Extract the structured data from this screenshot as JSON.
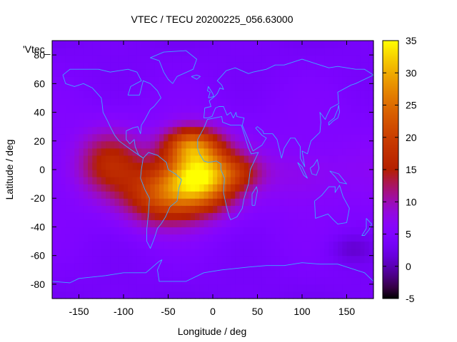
{
  "chart_data": {
    "type": "heatmap",
    "title": "VTEC / TECU 20200225_056.63000",
    "xlabel": "Longitude / deg",
    "ylabel": "Latitude / deg",
    "xlim": [
      -180,
      180
    ],
    "ylim": [
      -90,
      90
    ],
    "x_ticks": [
      -150,
      -100,
      -50,
      0,
      50,
      100,
      150
    ],
    "y_ticks": [
      -80,
      -60,
      -40,
      -20,
      0,
      20,
      40,
      60,
      80
    ],
    "x_tick_labels": [
      "-150",
      "-100",
      "-50",
      "0",
      "50",
      "100",
      "150"
    ],
    "y_tick_labels": [
      "-80",
      "-60",
      "-40",
      "-20",
      "0",
      "20",
      "40",
      "60",
      "80"
    ],
    "colorbar": {
      "min": -5,
      "max": 35,
      "ticks": [
        -5,
        0,
        5,
        10,
        15,
        20,
        25,
        30,
        35
      ],
      "tick_labels": [
        "-5",
        "0",
        "5",
        "10",
        "15",
        "20",
        "25",
        "30",
        "35"
      ]
    },
    "legend_label": "'Vtec_",
    "background_level": 6,
    "grid_step_deg": 5,
    "features": [
      {
        "name": "equatorial-anomaly-peak",
        "lon": -15,
        "lat": -5,
        "dlon": 38,
        "dlat": 22,
        "amp": 28
      },
      {
        "name": "north-crest",
        "lon": -25,
        "lat": 18,
        "dlon": 30,
        "dlat": 12,
        "amp": 14
      },
      {
        "name": "south-atlantic-band",
        "lon": -60,
        "lat": -18,
        "dlon": 40,
        "dlat": 20,
        "amp": 14
      },
      {
        "name": "west-extension",
        "lon": -115,
        "lat": 5,
        "dlon": 35,
        "dlat": 22,
        "amp": 10
      },
      {
        "name": "africa-tail",
        "lon": 30,
        "lat": -2,
        "dlon": 28,
        "dlat": 12,
        "amp": 6
      },
      {
        "name": "indian-ocean-low",
        "lon": 100,
        "lat": -5,
        "dlon": 40,
        "dlat": 18,
        "amp": 2
      },
      {
        "name": "south-pacific-min",
        "lon": 155,
        "lat": -55,
        "dlon": 25,
        "dlat": 10,
        "amp": -3
      }
    ],
    "coastlines": [
      {
        "name": "north-america",
        "points": [
          [
            -168,
            66
          ],
          [
            -160,
            70
          ],
          [
            -140,
            70
          ],
          [
            -128,
            70
          ],
          [
            -115,
            68
          ],
          [
            -95,
            70
          ],
          [
            -85,
            68
          ],
          [
            -80,
            62
          ],
          [
            -92,
            58
          ],
          [
            -95,
            52
          ],
          [
            -82,
            52
          ],
          [
            -78,
            62
          ],
          [
            -70,
            60
          ],
          [
            -62,
            55
          ],
          [
            -58,
            50
          ],
          [
            -66,
            44
          ],
          [
            -70,
            42
          ],
          [
            -76,
            35
          ],
          [
            -80,
            31
          ],
          [
            -81,
            25
          ],
          [
            -84,
            30
          ],
          [
            -90,
            29
          ],
          [
            -97,
            27
          ],
          [
            -97,
            21
          ],
          [
            -93,
            18
          ],
          [
            -88,
            21
          ],
          [
            -87,
            16
          ],
          [
            -83,
            10
          ],
          [
            -78,
            8
          ],
          [
            -80,
            9
          ],
          [
            -85,
            11
          ],
          [
            -92,
            14
          ],
          [
            -105,
            20
          ],
          [
            -110,
            24
          ],
          [
            -115,
            30
          ],
          [
            -118,
            34
          ],
          [
            -123,
            40
          ],
          [
            -124,
            46
          ],
          [
            -125,
            50
          ],
          [
            -135,
            57
          ],
          [
            -145,
            60
          ],
          [
            -155,
            58
          ],
          [
            -165,
            60
          ],
          [
            -168,
            66
          ]
        ]
      },
      {
        "name": "south-america",
        "points": [
          [
            -78,
            8
          ],
          [
            -72,
            12
          ],
          [
            -62,
            10
          ],
          [
            -52,
            5
          ],
          [
            -50,
            0
          ],
          [
            -42,
            -3
          ],
          [
            -35,
            -7
          ],
          [
            -38,
            -13
          ],
          [
            -40,
            -22
          ],
          [
            -48,
            -26
          ],
          [
            -53,
            -33
          ],
          [
            -58,
            -38
          ],
          [
            -62,
            -41
          ],
          [
            -65,
            -47
          ],
          [
            -68,
            -52
          ],
          [
            -70,
            -55
          ],
          [
            -74,
            -50
          ],
          [
            -74,
            -42
          ],
          [
            -72,
            -30
          ],
          [
            -71,
            -20
          ],
          [
            -76,
            -14
          ],
          [
            -81,
            -6
          ],
          [
            -80,
            0
          ],
          [
            -78,
            8
          ]
        ]
      },
      {
        "name": "greenland",
        "points": [
          [
            -45,
            60
          ],
          [
            -40,
            65
          ],
          [
            -22,
            70
          ],
          [
            -18,
            77
          ],
          [
            -30,
            83
          ],
          [
            -55,
            82
          ],
          [
            -70,
            78
          ],
          [
            -60,
            76
          ],
          [
            -55,
            68
          ],
          [
            -50,
            63
          ],
          [
            -45,
            60
          ]
        ]
      },
      {
        "name": "africa",
        "points": [
          [
            -17,
            21
          ],
          [
            -10,
            29
          ],
          [
            -6,
            35
          ],
          [
            10,
            37
          ],
          [
            11,
            33
          ],
          [
            20,
            31
          ],
          [
            32,
            31
          ],
          [
            35,
            25
          ],
          [
            40,
            15
          ],
          [
            43,
            11
          ],
          [
            51,
            12
          ],
          [
            42,
            0
          ],
          [
            40,
            -10
          ],
          [
            35,
            -20
          ],
          [
            33,
            -27
          ],
          [
            27,
            -33
          ],
          [
            20,
            -35
          ],
          [
            18,
            -32
          ],
          [
            15,
            -25
          ],
          [
            12,
            -16
          ],
          [
            13,
            -6
          ],
          [
            9,
            0
          ],
          [
            9,
            4
          ],
          [
            4,
            6
          ],
          [
            -5,
            5
          ],
          [
            -10,
            6
          ],
          [
            -15,
            11
          ],
          [
            -17,
            15
          ],
          [
            -17,
            21
          ]
        ]
      },
      {
        "name": "eurasia",
        "points": [
          [
            -10,
            36
          ],
          [
            -9,
            43
          ],
          [
            -2,
            44
          ],
          [
            -4,
            48
          ],
          [
            2,
            51
          ],
          [
            5,
            53
          ],
          [
            8,
            57
          ],
          [
            12,
            56
          ],
          [
            10,
            59
          ],
          [
            5,
            62
          ],
          [
            15,
            69
          ],
          [
            25,
            71
          ],
          [
            40,
            67
          ],
          [
            45,
            68
          ],
          [
            60,
            70
          ],
          [
            70,
            73
          ],
          [
            80,
            73
          ],
          [
            100,
            77
          ],
          [
            115,
            74
          ],
          [
            130,
            71
          ],
          [
            140,
            72
          ],
          [
            160,
            70
          ],
          [
            170,
            70
          ],
          [
            180,
            66
          ],
          [
            160,
            60
          ],
          [
            155,
            59
          ],
          [
            140,
            54
          ],
          [
            141,
            46
          ],
          [
            132,
            43
          ],
          [
            128,
            38
          ],
          [
            126,
            35
          ],
          [
            120,
            40
          ],
          [
            121,
            33
          ],
          [
            120,
            26
          ],
          [
            110,
            20
          ],
          [
            106,
            11
          ],
          [
            100,
            13
          ],
          [
            103,
            2
          ],
          [
            98,
            8
          ],
          [
            98,
            16
          ],
          [
            92,
            22
          ],
          [
            87,
            22
          ],
          [
            80,
            15
          ],
          [
            77,
            8
          ],
          [
            72,
            21
          ],
          [
            67,
            25
          ],
          [
            57,
            25
          ],
          [
            56,
            27
          ],
          [
            50,
            30
          ],
          [
            48,
            29
          ],
          [
            55,
            24
          ],
          [
            60,
            22
          ],
          [
            55,
            17
          ],
          [
            45,
            13
          ],
          [
            43,
            16
          ],
          [
            35,
            28
          ],
          [
            33,
            31
          ],
          [
            35,
            36
          ],
          [
            27,
            37
          ],
          [
            26,
            40
          ],
          [
            23,
            36
          ],
          [
            20,
            40
          ],
          [
            16,
            38
          ],
          [
            12,
            44
          ],
          [
            7,
            44
          ],
          [
            3,
            43
          ],
          [
            -1,
            37
          ],
          [
            -6,
            36
          ],
          [
            -10,
            36
          ]
        ]
      },
      {
        "name": "australia",
        "points": [
          [
            114,
            -22
          ],
          [
            122,
            -18
          ],
          [
            130,
            -12
          ],
          [
            137,
            -12
          ],
          [
            137,
            -16
          ],
          [
            142,
            -11
          ],
          [
            146,
            -19
          ],
          [
            153,
            -27
          ],
          [
            150,
            -37
          ],
          [
            140,
            -38
          ],
          [
            135,
            -35
          ],
          [
            129,
            -31
          ],
          [
            115,
            -34
          ],
          [
            114,
            -22
          ]
        ]
      },
      {
        "name": "antarctica",
        "points": [
          [
            -180,
            -78
          ],
          [
            -160,
            -79
          ],
          [
            -150,
            -76
          ],
          [
            -120,
            -74
          ],
          [
            -100,
            -72
          ],
          [
            -75,
            -72
          ],
          [
            -60,
            -64
          ],
          [
            -57,
            -63
          ],
          [
            -62,
            -70
          ],
          [
            -60,
            -78
          ],
          [
            -30,
            -78
          ],
          [
            -10,
            -72
          ],
          [
            10,
            -70
          ],
          [
            40,
            -68
          ],
          [
            60,
            -67
          ],
          [
            80,
            -67
          ],
          [
            100,
            -65
          ],
          [
            120,
            -66
          ],
          [
            140,
            -66
          ],
          [
            160,
            -70
          ],
          [
            170,
            -72
          ],
          [
            180,
            -78
          ]
        ]
      },
      {
        "name": "british-isles",
        "points": [
          [
            -5,
            50
          ],
          [
            1,
            51
          ],
          [
            0,
            53
          ],
          [
            -3,
            56
          ],
          [
            -5,
            58
          ],
          [
            -6,
            55
          ],
          [
            -3,
            54
          ],
          [
            -5,
            50
          ]
        ]
      },
      {
        "name": "madagascar",
        "points": [
          [
            44,
            -25
          ],
          [
            47,
            -25
          ],
          [
            50,
            -15
          ],
          [
            49,
            -12
          ],
          [
            44,
            -17
          ],
          [
            44,
            -25
          ]
        ]
      },
      {
        "name": "japan",
        "points": [
          [
            130,
            31
          ],
          [
            135,
            34
          ],
          [
            140,
            36
          ],
          [
            142,
            40
          ],
          [
            141,
            45
          ],
          [
            140,
            42
          ],
          [
            136,
            36
          ],
          [
            130,
            33
          ],
          [
            130,
            31
          ]
        ]
      },
      {
        "name": "new-zealand",
        "points": [
          [
            172,
            -34
          ],
          [
            178,
            -38
          ],
          [
            175,
            -42
          ],
          [
            170,
            -46
          ],
          [
            167,
            -46
          ],
          [
            172,
            -41
          ],
          [
            172,
            -34
          ]
        ]
      },
      {
        "name": "borneo",
        "points": [
          [
            109,
            1
          ],
          [
            113,
            3
          ],
          [
            117,
            7
          ],
          [
            119,
            1
          ],
          [
            116,
            -4
          ],
          [
            111,
            -3
          ],
          [
            109,
            1
          ]
        ]
      },
      {
        "name": "sumatra",
        "points": [
          [
            95,
            5
          ],
          [
            100,
            2
          ],
          [
            106,
            -6
          ],
          [
            102,
            -4
          ],
          [
            95,
            5
          ]
        ]
      },
      {
        "name": "new-guinea",
        "points": [
          [
            131,
            -1
          ],
          [
            141,
            -3
          ],
          [
            150,
            -10
          ],
          [
            142,
            -9
          ],
          [
            137,
            -5
          ],
          [
            131,
            -1
          ]
        ]
      },
      {
        "name": "iceland",
        "points": [
          [
            -24,
            65
          ],
          [
            -18,
            66
          ],
          [
            -14,
            65
          ],
          [
            -18,
            63
          ],
          [
            -24,
            65
          ]
        ]
      }
    ]
  }
}
